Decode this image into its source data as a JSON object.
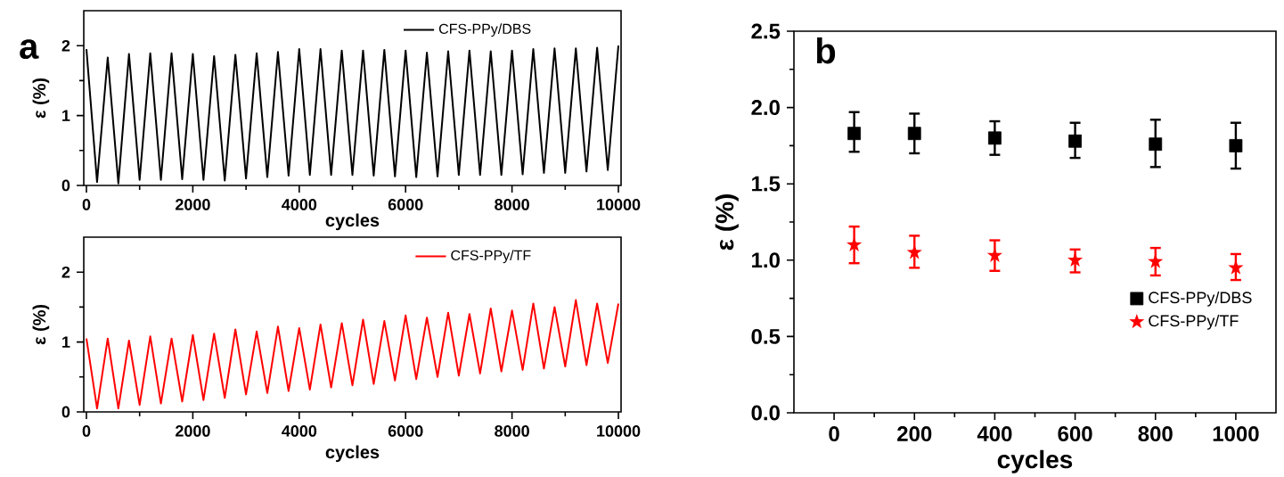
{
  "chart_data": [
    {
      "type": "line",
      "xlabel": "cycles",
      "ylabel": "ε (%)",
      "annotations": [
        "a"
      ],
      "xlim": [
        -50,
        10050
      ],
      "ylim": [
        0,
        2.5
      ],
      "xticks": [
        0,
        2000,
        4000,
        6000,
        8000,
        10000
      ],
      "yticks": [
        0,
        1,
        2
      ],
      "legend": "top right",
      "series": [
        {
          "name": "CFS-PPy/DBS",
          "color": "#000000",
          "x": [
            0,
            200,
            400,
            600,
            800,
            1000,
            1200,
            1400,
            1600,
            1800,
            2000,
            2200,
            2400,
            2600,
            2800,
            3000,
            3200,
            3400,
            3600,
            3800,
            4000,
            4200,
            4400,
            4600,
            4800,
            5000,
            5200,
            5400,
            5600,
            5800,
            6000,
            6200,
            6400,
            6600,
            6800,
            7000,
            7200,
            7400,
            7600,
            7800,
            8000,
            8200,
            8400,
            8600,
            8800,
            9000,
            9200,
            9400,
            9600,
            9800,
            10000
          ],
          "values": [
            1.95,
            0.05,
            1.83,
            0.03,
            1.88,
            0.08,
            1.89,
            0.08,
            1.89,
            0.09,
            1.88,
            0.08,
            1.85,
            0.07,
            1.87,
            0.1,
            1.89,
            0.12,
            1.91,
            0.14,
            1.95,
            0.15,
            1.95,
            0.15,
            1.93,
            0.15,
            1.93,
            0.14,
            1.94,
            0.13,
            1.93,
            0.12,
            1.9,
            0.13,
            1.92,
            0.15,
            1.93,
            0.15,
            1.92,
            0.15,
            1.93,
            0.16,
            1.95,
            0.18,
            1.96,
            0.18,
            1.96,
            0.2,
            1.97,
            0.22,
            2.0
          ]
        }
      ]
    },
    {
      "type": "line",
      "xlabel": "cycles",
      "ylabel": "ε (%)",
      "xlim": [
        -50,
        10050
      ],
      "ylim": [
        0,
        2.5
      ],
      "xticks": [
        0,
        2000,
        4000,
        6000,
        8000,
        10000
      ],
      "yticks": [
        0,
        1,
        2
      ],
      "legend": "top right",
      "series": [
        {
          "name": "CFS-PPy/TF",
          "color": "#ff0000",
          "x": [
            0,
            200,
            400,
            600,
            800,
            1000,
            1200,
            1400,
            1600,
            1800,
            2000,
            2200,
            2400,
            2600,
            2800,
            3000,
            3200,
            3400,
            3600,
            3800,
            4000,
            4200,
            4400,
            4600,
            4800,
            5000,
            5200,
            5400,
            5600,
            5800,
            6000,
            6200,
            6400,
            6600,
            6800,
            7000,
            7200,
            7400,
            7600,
            7800,
            8000,
            8200,
            8400,
            8600,
            8800,
            9000,
            9200,
            9400,
            9600,
            9800,
            10000
          ],
          "values": [
            1.05,
            0.05,
            1.05,
            0.05,
            1.02,
            0.1,
            1.08,
            0.12,
            1.05,
            0.15,
            1.1,
            0.17,
            1.12,
            0.2,
            1.18,
            0.25,
            1.15,
            0.27,
            1.22,
            0.3,
            1.2,
            0.32,
            1.25,
            0.35,
            1.27,
            0.38,
            1.32,
            0.4,
            1.3,
            0.45,
            1.38,
            0.47,
            1.35,
            0.5,
            1.42,
            0.52,
            1.4,
            0.55,
            1.48,
            0.58,
            1.45,
            0.6,
            1.55,
            0.62,
            1.5,
            0.65,
            1.6,
            0.67,
            1.55,
            0.7,
            1.55
          ]
        }
      ]
    },
    {
      "type": "scatter",
      "xlabel": "cycles",
      "ylabel": "ε (%)",
      "annotations": [
        "b"
      ],
      "xlim": [
        -100,
        1100
      ],
      "ylim": [
        0,
        2.5
      ],
      "xticks": [
        0,
        200,
        400,
        600,
        800,
        1000
      ],
      "yticks": [
        {
          "value": 0,
          "label": "0.0"
        },
        {
          "value": 0.5,
          "label": "0.5"
        },
        {
          "value": 1,
          "label": "1.0"
        },
        {
          "value": 1.5,
          "label": "1.5"
        },
        {
          "value": 2,
          "label": "2.0"
        },
        {
          "value": 2.5,
          "label": "2.5"
        }
      ],
      "legend": "bottom right",
      "series": [
        {
          "name": "CFS-PPy/DBS",
          "color": "#000000",
          "marker": "square",
          "x": [
            50,
            200,
            400,
            600,
            800,
            1000
          ],
          "values": [
            1.83,
            1.83,
            1.8,
            1.78,
            1.76,
            1.75
          ],
          "errors": [
            [
              1.71,
              1.97
            ],
            [
              1.7,
              1.96
            ],
            [
              1.69,
              1.91
            ],
            [
              1.67,
              1.9
            ],
            [
              1.61,
              1.92
            ],
            [
              1.6,
              1.9
            ]
          ]
        },
        {
          "name": "CFS-PPy/TF",
          "color": "#ff0000",
          "marker": "star",
          "x": [
            50,
            200,
            400,
            600,
            800,
            1000
          ],
          "values": [
            1.1,
            1.05,
            1.03,
            1.0,
            0.99,
            0.95
          ],
          "errors": [
            [
              0.98,
              1.22
            ],
            [
              0.95,
              1.16
            ],
            [
              0.93,
              1.13
            ],
            [
              0.92,
              1.07
            ],
            [
              0.9,
              1.08
            ],
            [
              0.87,
              1.04
            ]
          ]
        }
      ]
    }
  ]
}
